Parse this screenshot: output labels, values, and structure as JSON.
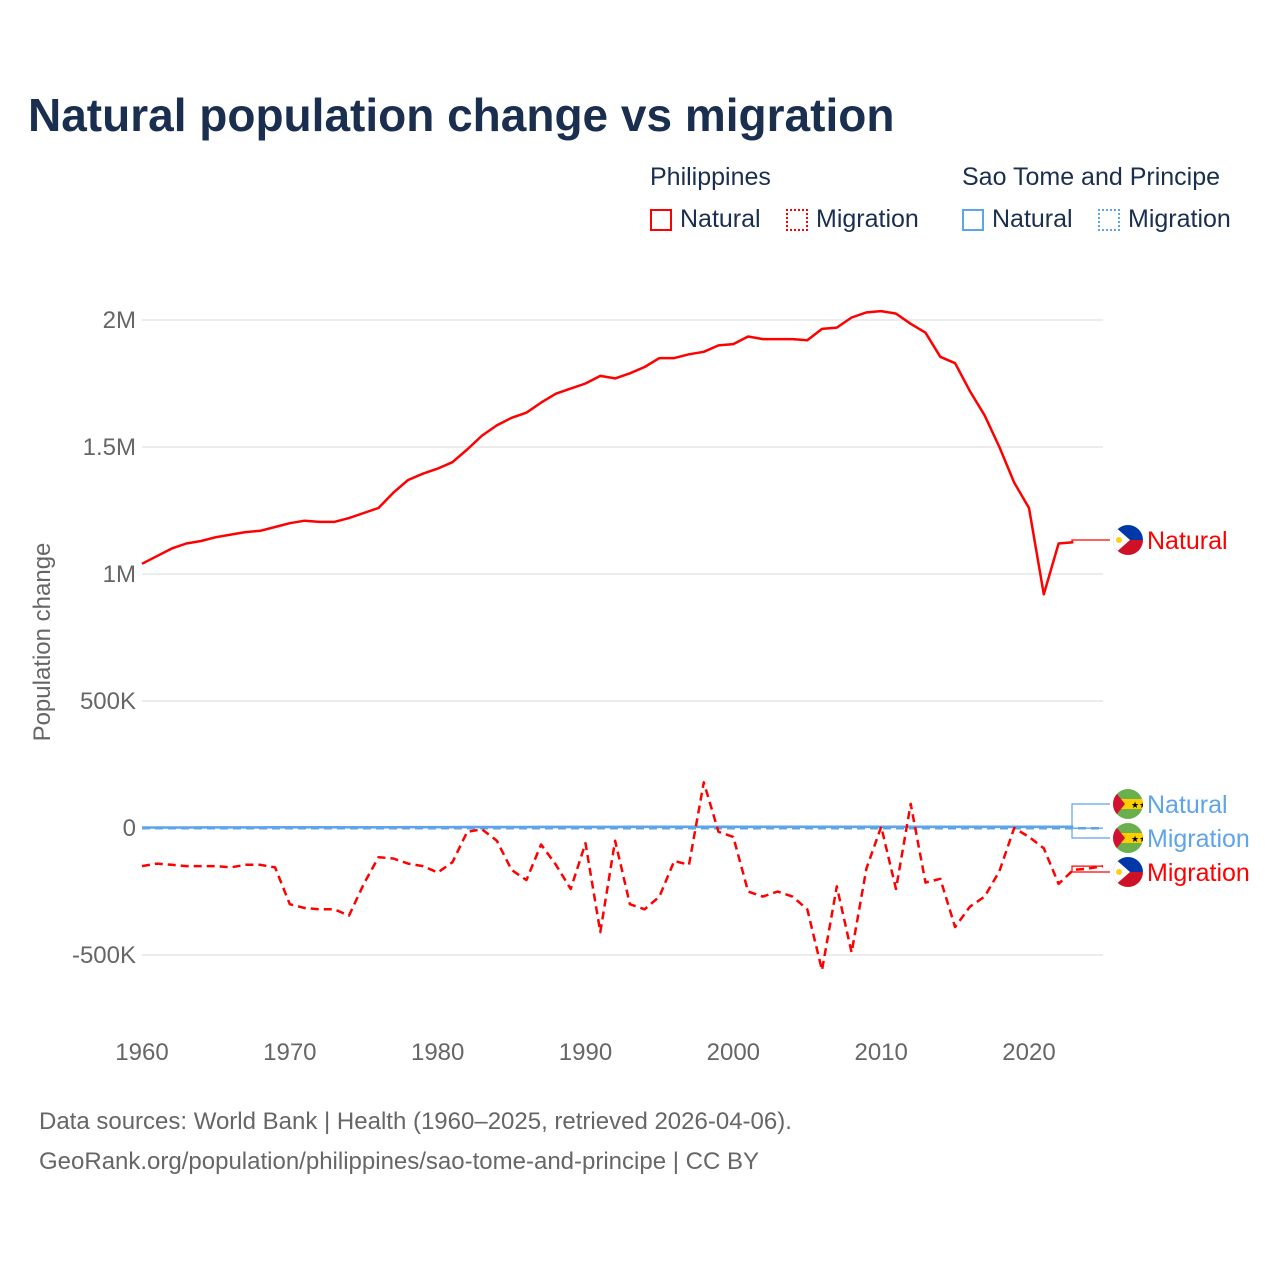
{
  "title": "Natural population change vs migration",
  "legend": {
    "groups": [
      {
        "name": "Philippines",
        "items": [
          "Natural",
          "Migration"
        ],
        "color": "#ff0000"
      },
      {
        "name": "Sao Tome and Principe",
        "items": [
          "Natural",
          "Migration"
        ],
        "color": "#5ea4e8"
      }
    ]
  },
  "footer": {
    "line1": "Data sources: World Bank | Health (1960–2025, retrieved 2026-04-06).",
    "line2": "GeoRank.org/population/philippines/sao-tome-and-principe | CC BY"
  },
  "chart_data": {
    "type": "line",
    "title": "Natural population change vs migration",
    "xlabel": "",
    "ylabel": "Population change",
    "xlim": [
      1960,
      2025
    ],
    "ylim": [
      -600000,
      2150000
    ],
    "yticks": [
      {
        "v": 2000000,
        "label": "2M"
      },
      {
        "v": 1500000,
        "label": "1.5M"
      },
      {
        "v": 1000000,
        "label": "1M"
      },
      {
        "v": 500000,
        "label": "500K"
      },
      {
        "v": 0,
        "label": "0"
      },
      {
        "v": -500000,
        "label": "-500K"
      }
    ],
    "xticks": [
      1960,
      1970,
      1980,
      1990,
      2000,
      2010,
      2020
    ],
    "series": [
      {
        "name": "Philippines Natural",
        "label": "Natural",
        "color": "#ff0000",
        "dash": false,
        "start": 1960,
        "values": [
          1040000,
          1070000,
          1100000,
          1120000,
          1130000,
          1145000,
          1155000,
          1165000,
          1170000,
          1185000,
          1200000,
          1210000,
          1205000,
          1205000,
          1220000,
          1240000,
          1260000,
          1320000,
          1370000,
          1395000,
          1415000,
          1440000,
          1490000,
          1545000,
          1585000,
          1615000,
          1635000,
          1675000,
          1710000,
          1730000,
          1750000,
          1780000,
          1770000,
          1790000,
          1815000,
          1850000,
          1850000,
          1865000,
          1875000,
          1900000,
          1905000,
          1935000,
          1925000,
          1925000,
          1925000,
          1920000,
          1965000,
          1970000,
          2010000,
          2030000,
          2035000,
          2025000,
          1985000,
          1950000,
          1855000,
          1830000,
          1720000,
          1625000,
          1500000,
          1360000,
          1260000,
          920000,
          1120000,
          1125000
        ]
      },
      {
        "name": "Philippines Migration",
        "label": "Migration",
        "color": "#ff0000",
        "dash": true,
        "start": 1960,
        "values": [
          -150000,
          -140000,
          -145000,
          -150000,
          -150000,
          -150000,
          -155000,
          -145000,
          -145000,
          -155000,
          -300000,
          -315000,
          -320000,
          -320000,
          -345000,
          -220000,
          -115000,
          -120000,
          -140000,
          -150000,
          -175000,
          -135000,
          -15000,
          -5000,
          -50000,
          -165000,
          -205000,
          -65000,
          -145000,
          -240000,
          -60000,
          -410000,
          -50000,
          -300000,
          -320000,
          -270000,
          -130000,
          -145000,
          180000,
          -15000,
          -35000,
          -250000,
          -270000,
          -250000,
          -270000,
          -320000,
          -560000,
          -230000,
          -490000,
          -160000,
          5000,
          -240000,
          95000,
          -215000,
          -200000,
          -390000,
          -310000,
          -270000,
          -170000,
          0,
          -35000,
          -80000,
          -220000,
          -165000,
          -160000,
          -150000
        ]
      },
      {
        "name": "Sao Tome and Principe Natural",
        "label": "Natural",
        "color": "#5ea4e8",
        "dash": false,
        "start": 1960,
        "values": [
          2000,
          2000,
          2000,
          2100,
          2200,
          2300,
          2300,
          2400,
          2500,
          2600,
          2700,
          2800,
          2900,
          3000,
          3000,
          3100,
          3200,
          3300,
          3400,
          3500,
          3600,
          3700,
          3800,
          3900,
          4000,
          4100,
          4100,
          4200,
          4300,
          4400,
          4400,
          4500,
          4500,
          4600,
          4600,
          4700,
          4700,
          4800,
          4800,
          4900,
          4900,
          5000,
          5000,
          5100,
          5100,
          5200,
          5200,
          5200,
          5300,
          5300,
          5300,
          5300,
          5300,
          5300,
          5300,
          5200,
          5200,
          5200,
          5100,
          5100,
          5000,
          5000,
          5000,
          4900
        ]
      },
      {
        "name": "Sao Tome and Principe Migration",
        "label": "Migration",
        "color": "#5ea4e8",
        "dash": true,
        "start": 1960,
        "values": [
          -1000,
          -1000,
          -1000,
          -1000,
          -1000,
          -1000,
          -1000,
          -1000,
          -1000,
          -1000,
          -1000,
          -1000,
          -1000,
          -1000,
          -1000,
          -1000,
          -1000,
          -1000,
          -1000,
          -1000,
          -1000,
          -1000,
          -1000,
          -1000,
          -1000,
          -1000,
          -1000,
          -1000,
          -1000,
          -1000,
          -1000,
          -1000,
          -1000,
          -1000,
          -1000,
          -1000,
          -1000,
          -1000,
          -1000,
          -1000,
          -1000,
          -1000,
          -1000,
          -1000,
          -1000,
          -1000,
          -1000,
          -1000,
          -1000,
          -1000,
          -1000,
          -1000,
          -1000,
          -1000,
          -1000,
          -1000,
          -1000,
          -1000,
          -1000,
          -1000,
          -1000,
          -1000,
          -1000,
          -1000,
          -1000,
          -1000
        ]
      }
    ]
  }
}
